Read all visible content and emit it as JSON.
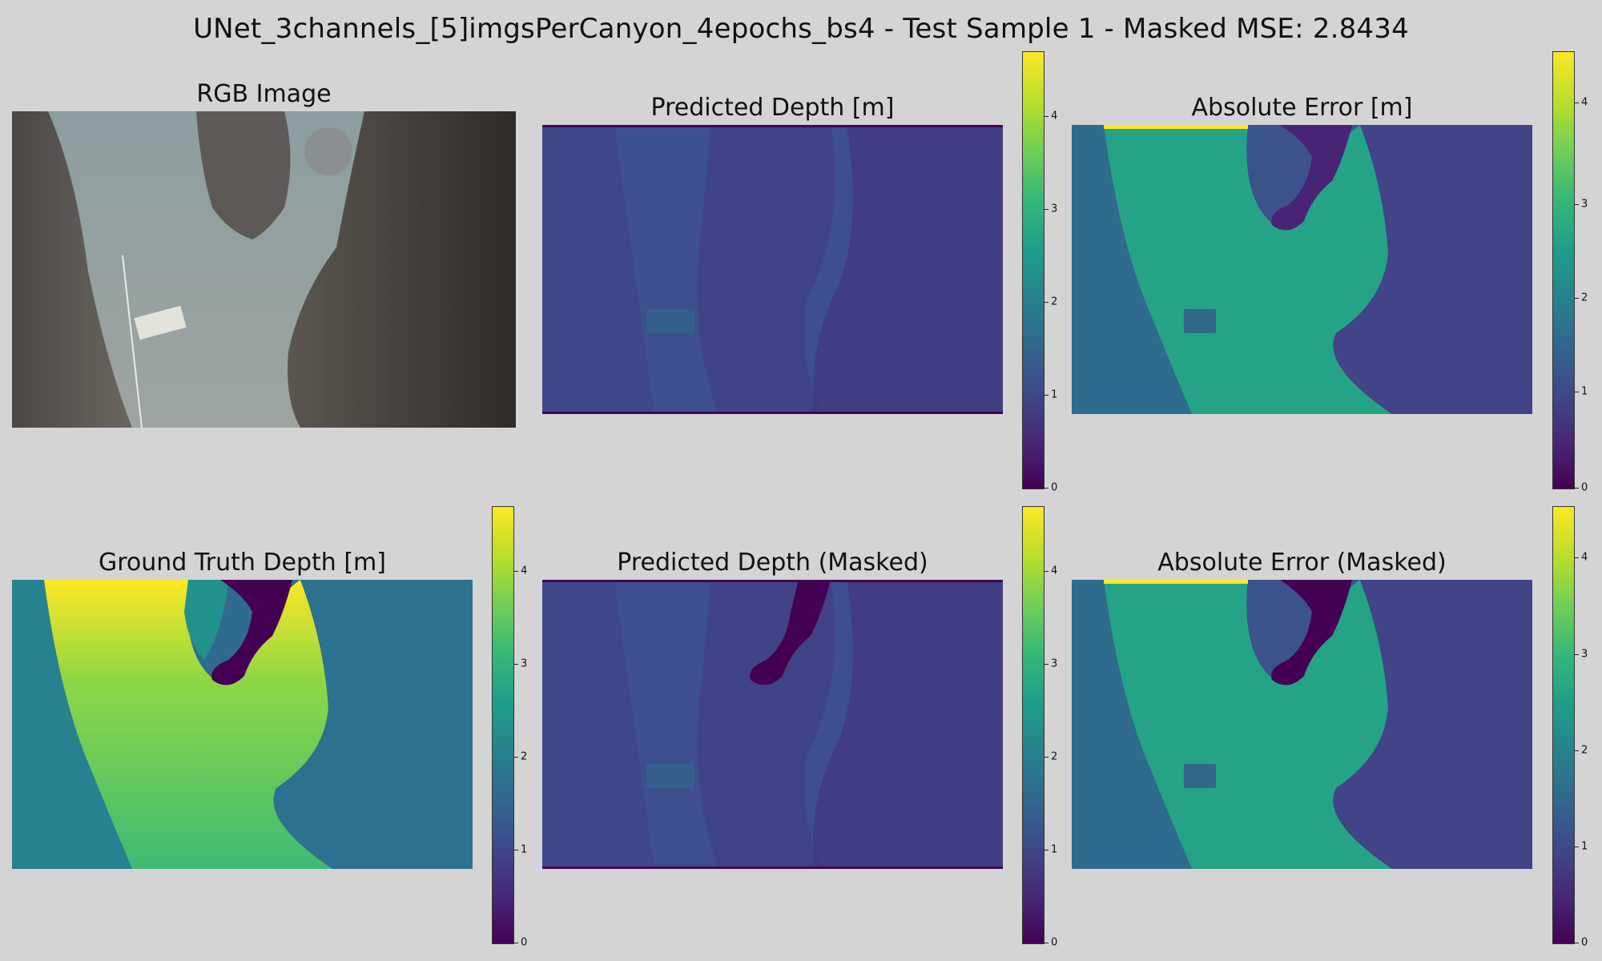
{
  "figure_title": "UNet_3channels_[5]imgsPerCanyon_4epochs_bs4 - Test Sample 1 - Masked MSE: 2.8434",
  "panels": {
    "rgb": "RGB Image",
    "pred": "Predicted Depth [m]",
    "err": "Absolute Error [m]",
    "gt": "Ground Truth Depth [m]",
    "pred_masked": "Predicted Depth (Masked)",
    "err_masked": "Absolute Error (Masked)"
  },
  "colormap": "viridis",
  "colors": {
    "viridis_low": "#440154",
    "viridis_high": "#fde725",
    "background": "#d4d4d4"
  },
  "colorbar_ticks": [
    "0",
    "1",
    "2",
    "3",
    "4"
  ]
}
